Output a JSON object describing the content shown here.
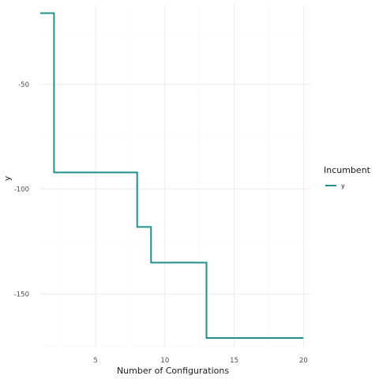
{
  "chart_data": {
    "type": "line",
    "step": true,
    "xlabel": "Number of Configurations",
    "ylabel": "y",
    "xlim": [
      0.95,
      20.55
    ],
    "ylim": [
      -175.5,
      -12
    ],
    "x_ticks": [
      5,
      10,
      15,
      20
    ],
    "y_ticks": [
      -50,
      -100,
      -150
    ],
    "grid": true,
    "legend": {
      "title": "Incumbent",
      "position": "right"
    },
    "series": [
      {
        "name": "y",
        "color": "#22908c",
        "x": [
          1,
          2,
          8,
          9,
          13,
          20
        ],
        "y": [
          -16,
          -92,
          -118,
          -135,
          -171,
          -171
        ]
      }
    ]
  }
}
